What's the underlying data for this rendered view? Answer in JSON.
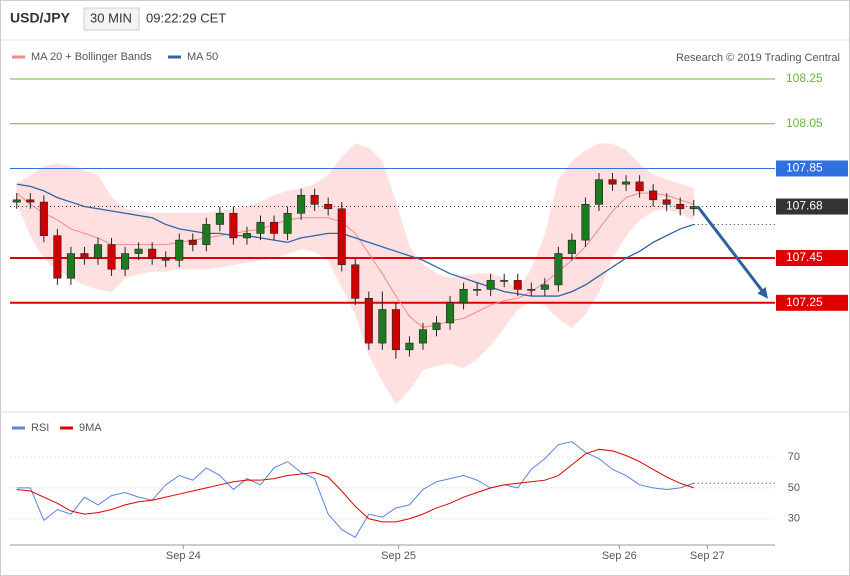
{
  "header": {
    "symbol": "USD/JPY",
    "interval": "30 MIN",
    "time": "09:22:29 CET",
    "source": "Research © 2019 Trading Central"
  },
  "chart_data": [
    {
      "type": "candlestick",
      "x": [
        0,
        1,
        2,
        3,
        4,
        5,
        6,
        7,
        8,
        9,
        10,
        11,
        12,
        13,
        14,
        15,
        16,
        17,
        18,
        19,
        20,
        21,
        22,
        23,
        24,
        25,
        26,
        27,
        28,
        29,
        30,
        31,
        32,
        33,
        34,
        35,
        36,
        37,
        38,
        39,
        40,
        41,
        42,
        43,
        44,
        45,
        46,
        47,
        48,
        49,
        50
      ],
      "open": [
        107.7,
        107.71,
        107.7,
        107.55,
        107.36,
        107.47,
        107.45,
        107.51,
        107.4,
        107.47,
        107.49,
        107.45,
        107.44,
        107.53,
        107.51,
        107.6,
        107.65,
        107.54,
        107.56,
        107.61,
        107.56,
        107.65,
        107.73,
        107.69,
        107.67,
        107.42,
        107.27,
        107.07,
        107.22,
        107.04,
        107.07,
        107.13,
        107.16,
        107.25,
        107.31,
        107.31,
        107.35,
        107.35,
        107.31,
        107.31,
        107.33,
        107.47,
        107.53,
        107.69,
        107.8,
        107.78,
        107.79,
        107.75,
        107.71,
        107.69,
        107.67
      ],
      "high": [
        107.74,
        107.74,
        107.73,
        107.58,
        107.5,
        107.5,
        107.54,
        107.54,
        107.5,
        107.52,
        107.52,
        107.48,
        107.56,
        107.56,
        107.63,
        107.68,
        107.68,
        107.59,
        107.64,
        107.64,
        107.68,
        107.76,
        107.76,
        107.72,
        107.7,
        107.45,
        107.3,
        107.3,
        107.25,
        107.1,
        107.16,
        107.19,
        107.28,
        107.34,
        107.34,
        107.38,
        107.38,
        107.38,
        107.34,
        107.36,
        107.5,
        107.56,
        107.72,
        107.83,
        107.83,
        107.82,
        107.82,
        107.78,
        107.74,
        107.72,
        107.71
      ],
      "low": [
        107.67,
        107.67,
        107.52,
        107.33,
        107.33,
        107.42,
        107.42,
        107.37,
        107.37,
        107.44,
        107.42,
        107.41,
        107.41,
        107.48,
        107.48,
        107.57,
        107.51,
        107.51,
        107.53,
        107.53,
        107.53,
        107.62,
        107.66,
        107.64,
        107.39,
        107.24,
        107.04,
        107.04,
        107.0,
        107.01,
        107.04,
        107.1,
        107.13,
        107.22,
        107.28,
        107.28,
        107.32,
        107.28,
        107.28,
        107.28,
        107.3,
        107.44,
        107.5,
        107.66,
        107.75,
        107.75,
        107.72,
        107.68,
        107.66,
        107.64,
        107.64
      ],
      "close": [
        107.71,
        107.7,
        107.55,
        107.36,
        107.47,
        107.45,
        107.51,
        107.4,
        107.47,
        107.49,
        107.45,
        107.44,
        107.53,
        107.51,
        107.6,
        107.65,
        107.54,
        107.56,
        107.61,
        107.56,
        107.65,
        107.73,
        107.69,
        107.67,
        107.42,
        107.27,
        107.07,
        107.22,
        107.04,
        107.07,
        107.13,
        107.16,
        107.25,
        107.31,
        107.31,
        107.35,
        107.35,
        107.31,
        107.31,
        107.33,
        107.47,
        107.53,
        107.69,
        107.8,
        107.78,
        107.79,
        107.75,
        107.71,
        107.69,
        107.67,
        107.68
      ],
      "up_color": "#1e7a1e",
      "down_color": "#cc0000",
      "series": [
        {
          "name": "MA 20 + Bollinger Bands",
          "color": "#f08a8a",
          "band_color": "#ffe0e0",
          "values": [
            107.74,
            107.69,
            107.65,
            107.62,
            107.58,
            107.56,
            107.54,
            107.51,
            107.51,
            107.51,
            107.51,
            107.51,
            107.52,
            107.53,
            107.54,
            107.55,
            107.56,
            107.57,
            107.58,
            107.6,
            107.62,
            107.63,
            107.63,
            107.63,
            107.61,
            107.56,
            107.47,
            107.38,
            107.28,
            107.19,
            107.14,
            107.15,
            107.17,
            107.18,
            107.21,
            107.24,
            107.26,
            107.27,
            107.3,
            107.34,
            107.39,
            107.44,
            107.5,
            107.58,
            107.66,
            107.72,
            107.74,
            107.74,
            107.73,
            107.71,
            107.69
          ],
          "upper": [
            107.78,
            107.82,
            107.86,
            107.87,
            107.86,
            107.84,
            107.82,
            107.72,
            107.67,
            107.66,
            107.65,
            107.65,
            107.65,
            107.65,
            107.65,
            107.66,
            107.67,
            107.68,
            107.7,
            107.73,
            107.75,
            107.76,
            107.78,
            107.82,
            107.9,
            107.96,
            107.94,
            107.88,
            107.7,
            107.5,
            107.42,
            107.38,
            107.36,
            107.37,
            107.38,
            107.38,
            107.36,
            107.3,
            107.4,
            107.55,
            107.8,
            107.88,
            107.93,
            107.96,
            107.96,
            107.93,
            107.87,
            107.82,
            107.8,
            107.78,
            107.76
          ],
          "lower": [
            107.7,
            107.55,
            107.45,
            107.4,
            107.36,
            107.33,
            107.31,
            107.3,
            107.36,
            107.38,
            107.39,
            107.39,
            107.4,
            107.4,
            107.4,
            107.41,
            107.42,
            107.43,
            107.44,
            107.45,
            107.47,
            107.49,
            107.48,
            107.44,
            107.32,
            107.2,
            107.02,
            106.9,
            106.8,
            106.86,
            106.95,
            106.97,
            106.98,
            106.96,
            107.0,
            107.06,
            107.14,
            107.22,
            107.26,
            107.24,
            107.18,
            107.14,
            107.2,
            107.3,
            107.45,
            107.55,
            107.62,
            107.66,
            107.67,
            107.65,
            107.62
          ]
        },
        {
          "name": "MA 50",
          "color": "#2e65a8",
          "values": [
            107.78,
            107.77,
            107.75,
            107.72,
            107.7,
            107.68,
            107.67,
            107.66,
            107.65,
            107.64,
            107.63,
            107.6,
            107.58,
            107.57,
            107.56,
            107.56,
            107.55,
            107.55,
            107.54,
            107.53,
            107.52,
            107.54,
            107.55,
            107.56,
            107.56,
            107.54,
            107.52,
            107.5,
            107.48,
            107.46,
            107.44,
            107.41,
            107.38,
            107.36,
            107.34,
            107.32,
            107.3,
            107.29,
            107.28,
            107.28,
            107.28,
            107.3,
            107.33,
            107.37,
            107.41,
            107.45,
            107.48,
            107.52,
            107.55,
            107.58,
            107.6
          ]
        }
      ],
      "levels": [
        {
          "value": 108.25,
          "color": "#6cb33e",
          "style": "text"
        },
        {
          "value": 108.05,
          "color": "#6cb33e",
          "style": "text"
        },
        {
          "value": 107.85,
          "color": "#2f6fe0",
          "style": "box"
        },
        {
          "value": 107.68,
          "color": "#333333",
          "style": "current"
        },
        {
          "value": 107.45,
          "color": "#e00000",
          "style": "box"
        },
        {
          "value": 107.25,
          "color": "#e00000",
          "style": "box"
        }
      ],
      "xlim": [
        -0.5,
        56
      ],
      "ylim": [
        106.78,
        108.29
      ],
      "xticks": [
        {
          "value": 12.3,
          "label": "Sep 24"
        },
        {
          "value": 28.2,
          "label": "Sep 25"
        },
        {
          "value": 44.5,
          "label": "Sep 26"
        },
        {
          "value": 51,
          "label": "Sep 27"
        }
      ]
    },
    {
      "type": "line",
      "series": [
        {
          "name": "RSI",
          "color": "#5b83dc",
          "values": [
            50,
            50,
            29,
            36,
            33,
            44,
            39,
            45,
            47,
            44,
            42,
            52,
            58,
            55,
            63,
            58,
            49,
            56,
            52,
            63,
            67,
            60,
            56,
            33,
            23,
            18,
            33,
            31,
            37,
            39,
            49,
            54,
            56,
            58,
            55,
            50,
            52,
            50,
            62,
            69,
            78,
            80,
            73,
            69,
            62,
            58,
            52,
            50,
            49,
            50,
            53
          ]
        },
        {
          "name": "9MA",
          "color": "#e00000",
          "values": [
            49,
            48,
            44,
            40,
            35,
            33,
            34,
            36,
            39,
            41,
            42,
            44,
            46,
            48,
            50,
            52,
            54,
            55,
            55,
            56,
            58,
            59,
            60,
            57,
            48,
            38,
            30,
            28,
            28,
            30,
            33,
            37,
            40,
            44,
            47,
            50,
            52,
            53,
            54,
            55,
            58,
            65,
            72,
            75,
            74,
            71,
            67,
            62,
            57,
            53,
            50
          ]
        }
      ],
      "ylim": [
        13,
        94
      ],
      "yticks": [
        30,
        50,
        70
      ]
    }
  ]
}
